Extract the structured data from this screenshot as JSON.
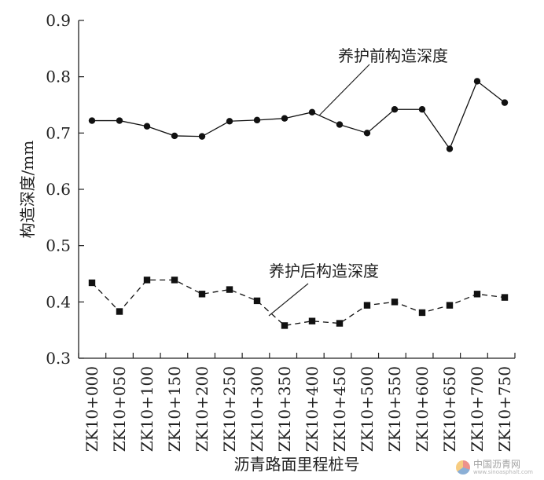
{
  "chart_data": {
    "type": "line",
    "categories": [
      "ZK10+000",
      "ZK10+050",
      "ZK10+100",
      "ZK10+150",
      "ZK10+200",
      "ZK10+250",
      "ZK10+300",
      "ZK10+350",
      "ZK10+400",
      "ZK10+450",
      "ZK10+500",
      "ZK10+550",
      "ZK10+600",
      "ZK10+650",
      "ZK10+700",
      "ZK10+750"
    ],
    "series": [
      {
        "name": "养护前构造深度",
        "marker": "circle",
        "line": "solid",
        "values": [
          0.722,
          0.722,
          0.712,
          0.695,
          0.694,
          0.721,
          0.723,
          0.726,
          0.737,
          0.715,
          0.7,
          0.742,
          0.742,
          0.672,
          0.792,
          0.754
        ]
      },
      {
        "name": "养护后构造深度",
        "marker": "square",
        "line": "dashed",
        "values": [
          0.434,
          0.383,
          0.439,
          0.439,
          0.414,
          0.422,
          0.402,
          0.358,
          0.366,
          0.362,
          0.394,
          0.4,
          0.381,
          0.394,
          0.414,
          0.408
        ]
      }
    ],
    "xlabel": "沥青路面里程桩号",
    "ylabel": "构造深度/mm",
    "ylim": [
      0.3,
      0.9
    ],
    "yticks": [
      "0.3",
      "0.4",
      "0.5",
      "0.6",
      "0.7",
      "0.8",
      "0.9"
    ],
    "grid": false,
    "annotations": {
      "before": "养护前构造深度",
      "after": "养护后构造深度"
    },
    "colors": {
      "line": "#111111",
      "axis": "#222222"
    }
  },
  "watermark": {
    "name": "中国沥青网",
    "url": "www.sinoasphalt.com"
  }
}
